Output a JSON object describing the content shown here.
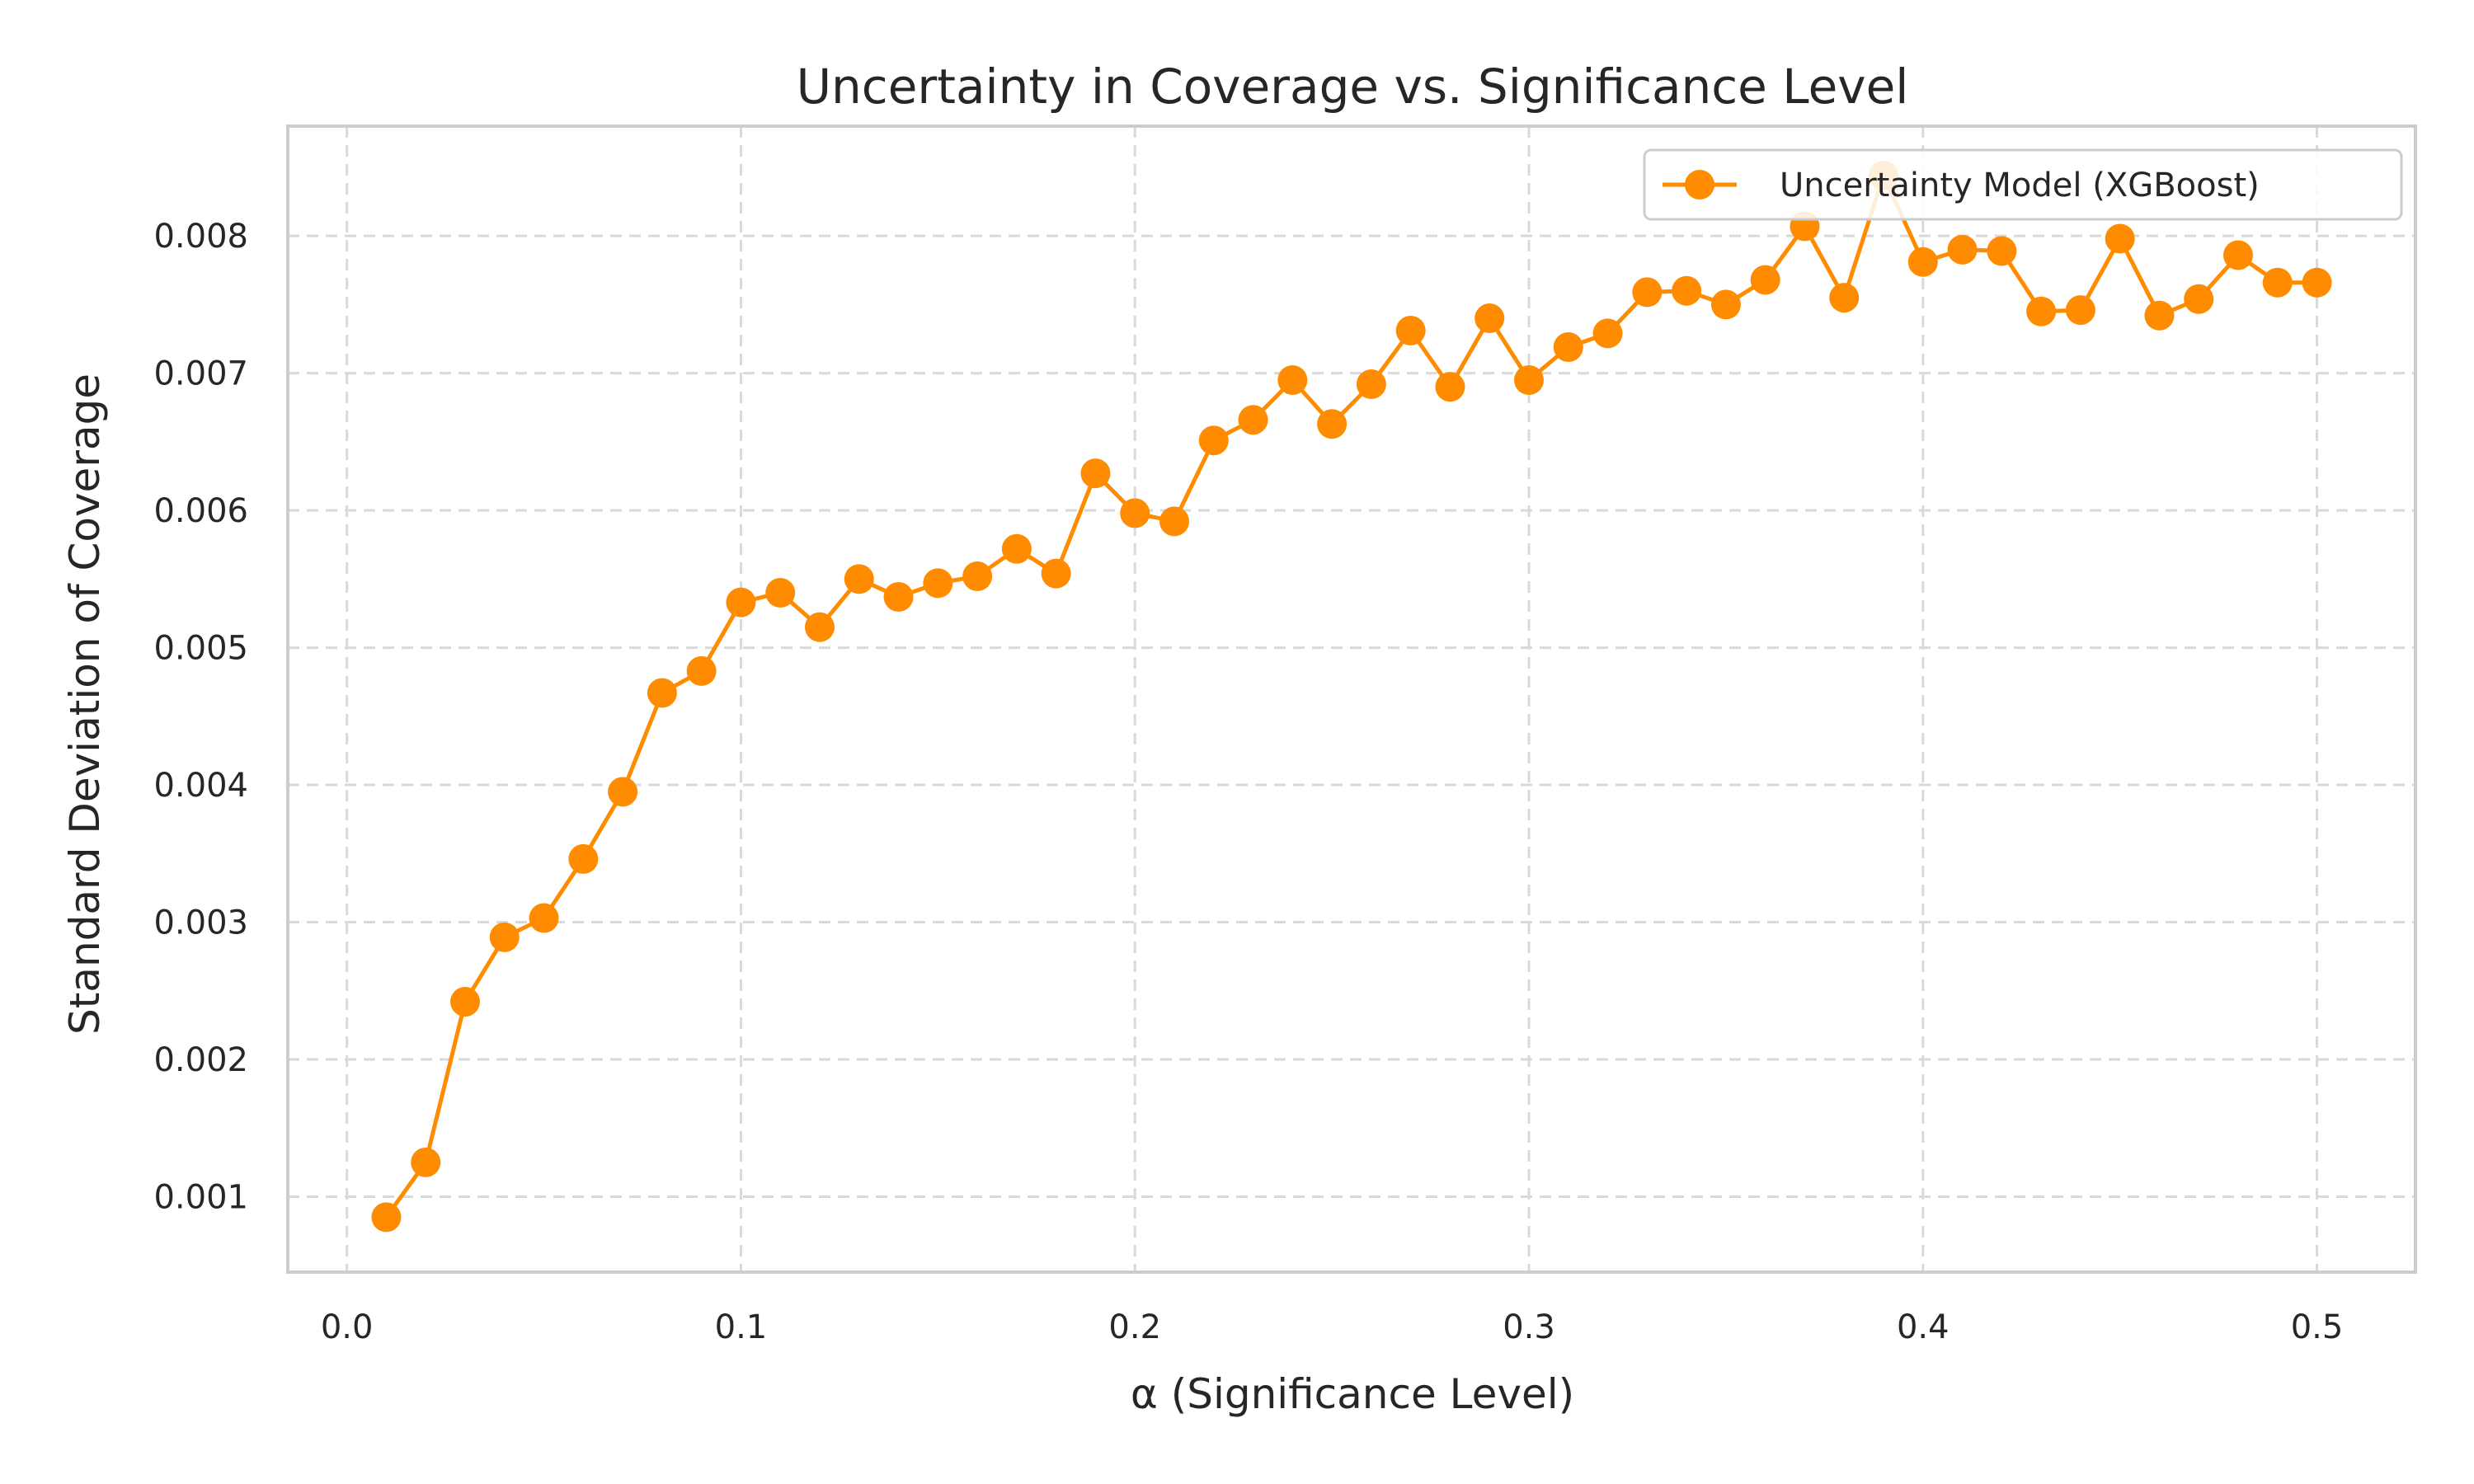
{
  "chart_data": {
    "type": "line",
    "title": "Uncertainty in Coverage vs. Significance Level",
    "xlabel": "α (Significance Level)",
    "ylabel": "Standard Deviation of Coverage",
    "xlim": [
      -0.015,
      0.525
    ],
    "ylim": [
      0.00045,
      0.0088
    ],
    "xticks": [
      0.0,
      0.1,
      0.2,
      0.3,
      0.4,
      0.5
    ],
    "xtick_labels": [
      "0.0",
      "0.1",
      "0.2",
      "0.3",
      "0.4",
      "0.5"
    ],
    "yticks": [
      0.001,
      0.002,
      0.003,
      0.004,
      0.005,
      0.006,
      0.007,
      0.008
    ],
    "ytick_labels": [
      "0.001",
      "0.002",
      "0.003",
      "0.004",
      "0.005",
      "0.006",
      "0.007",
      "0.008"
    ],
    "grid": true,
    "legend_position": "top-right",
    "series": [
      {
        "name": "Uncertainty Model (XGBoost)",
        "color": "#ff8c00",
        "marker": "circle",
        "x": [
          0.01,
          0.02,
          0.03,
          0.04,
          0.05,
          0.06,
          0.07,
          0.08,
          0.09,
          0.1,
          0.11,
          0.12,
          0.13,
          0.14,
          0.15,
          0.16,
          0.17,
          0.18,
          0.19,
          0.2,
          0.21,
          0.22,
          0.23,
          0.24,
          0.25,
          0.26,
          0.27,
          0.28,
          0.29,
          0.3,
          0.31,
          0.32,
          0.33,
          0.34,
          0.35,
          0.36,
          0.37,
          0.38,
          0.39,
          0.4,
          0.41,
          0.42,
          0.43,
          0.44,
          0.45,
          0.46,
          0.47,
          0.48,
          0.49,
          0.5
        ],
        "y": [
          0.00085,
          0.00125,
          0.00242,
          0.00289,
          0.00303,
          0.00346,
          0.00395,
          0.00467,
          0.00483,
          0.00533,
          0.0054,
          0.00515,
          0.0055,
          0.00537,
          0.00547,
          0.00552,
          0.00572,
          0.00554,
          0.00627,
          0.00598,
          0.00592,
          0.00651,
          0.00666,
          0.00695,
          0.00663,
          0.00692,
          0.00731,
          0.0069,
          0.0074,
          0.00695,
          0.00719,
          0.00729,
          0.00759,
          0.0076,
          0.0075,
          0.00768,
          0.00807,
          0.00755,
          0.00844,
          0.00781,
          0.0079,
          0.00789,
          0.00745,
          0.00746,
          0.00798,
          0.00742,
          0.00754,
          0.00786,
          0.00766,
          0.00766
        ]
      }
    ]
  }
}
